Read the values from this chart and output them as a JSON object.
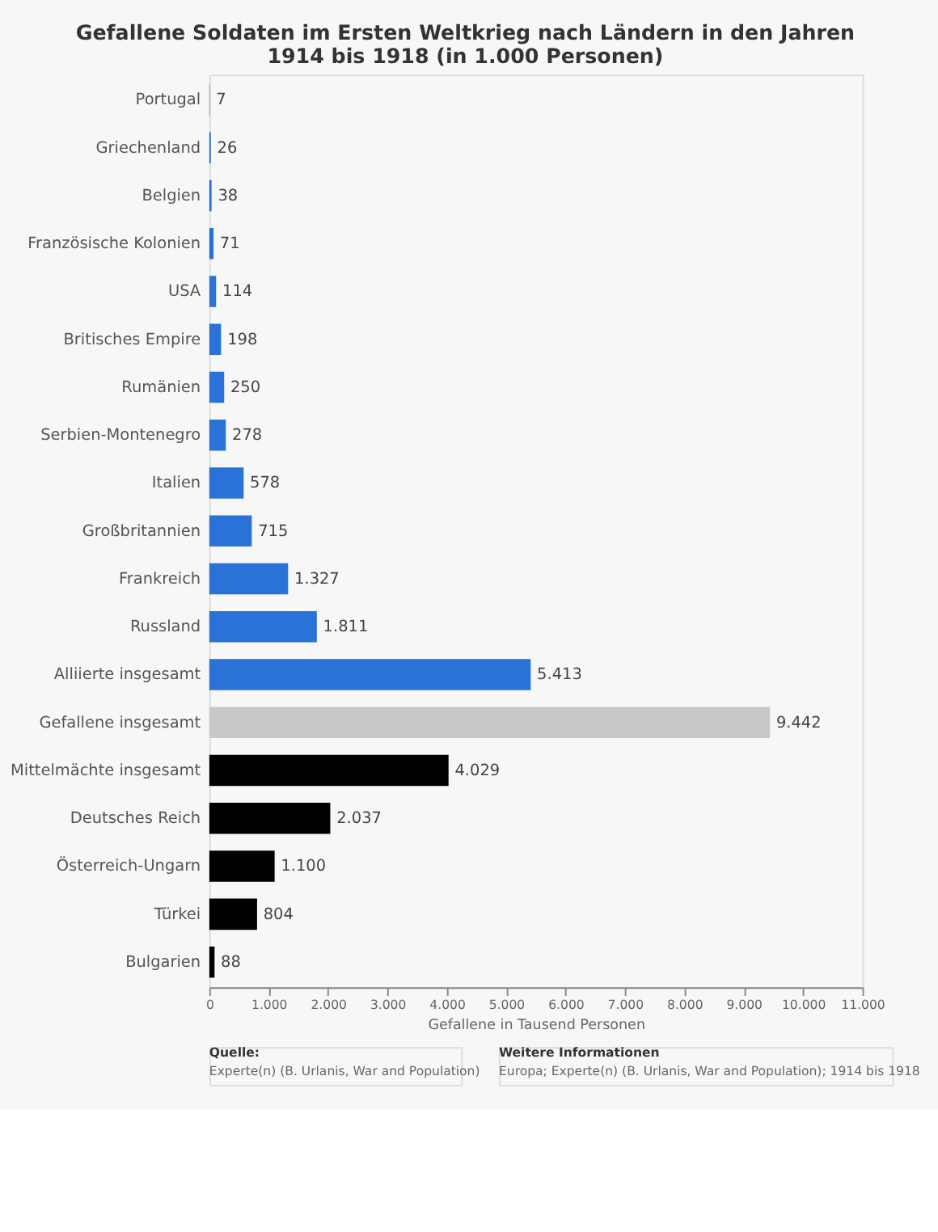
{
  "chart_data": {
    "type": "bar",
    "orientation": "horizontal",
    "title": "Gefallene Soldaten im Ersten Weltkrieg nach Ländern in den Jahren 1914 bis 1918 (in 1.000 Personen)",
    "xlabel": "Gefallene in Tausend Personen",
    "categories": [
      "Portugal",
      "Griechenland",
      "Belgien",
      "Französische Kolonien",
      "USA",
      "Britisches Empire",
      "Rumänien",
      "Serbien-Montenegro",
      "Italien",
      "Großbritannien",
      "Frankreich",
      "Russland",
      "Alliierte insgesamt",
      "Gefallene insgesamt",
      "Mittelmächte insgesamt",
      "Deutsches Reich",
      "Österreich-Ungarn",
      "Türkei",
      "Bulgarien"
    ],
    "values": [
      7,
      26,
      38,
      71,
      114,
      198,
      250,
      278,
      578,
      715,
      1327,
      1811,
      5413,
      9442,
      4029,
      2037,
      1100,
      804,
      88
    ],
    "value_labels": [
      "7",
      "26",
      "38",
      "71",
      "114",
      "198",
      "250",
      "278",
      "578",
      "715",
      "1.327",
      "1.811",
      "5.413",
      "9.442",
      "4.029",
      "2.037",
      "1.100",
      "804",
      "88"
    ],
    "colors": [
      "#2a72d8",
      "#2a72d8",
      "#2a72d8",
      "#2a72d8",
      "#2a72d8",
      "#2a72d8",
      "#2a72d8",
      "#2a72d8",
      "#2a72d8",
      "#2a72d8",
      "#2a72d8",
      "#2a72d8",
      "#2a72d8",
      "#c8c8c8",
      "#000000",
      "#000000",
      "#000000",
      "#000000",
      "#000000"
    ],
    "xlim": [
      0,
      11000
    ],
    "xticks": [
      0,
      {
        "value": 1000,
        "label": "1.000"
      },
      {
        "value": 2000,
        "label": "2.000"
      },
      {
        "value": 3000,
        "label": "3.000"
      },
      {
        "value": 4000,
        "label": "4.000"
      },
      {
        "value": 5000,
        "label": "5.000"
      },
      {
        "value": 6000,
        "label": "6.000"
      },
      {
        "value": 7000,
        "label": "7.000"
      },
      {
        "value": 8000,
        "label": "8.000"
      },
      {
        "value": 9000,
        "label": "9.000"
      },
      {
        "value": 10000,
        "label": "10.000"
      },
      {
        "value": 11000,
        "label": "11.000"
      }
    ],
    "annotations": [
      "Quelle:",
      "Experte(n) (B. Urlanis, War and Population)",
      "Weitere Informationen",
      "Europa; Experte(n) (B. Urlanis, War and Population); 1914 bis 1918"
    ]
  }
}
